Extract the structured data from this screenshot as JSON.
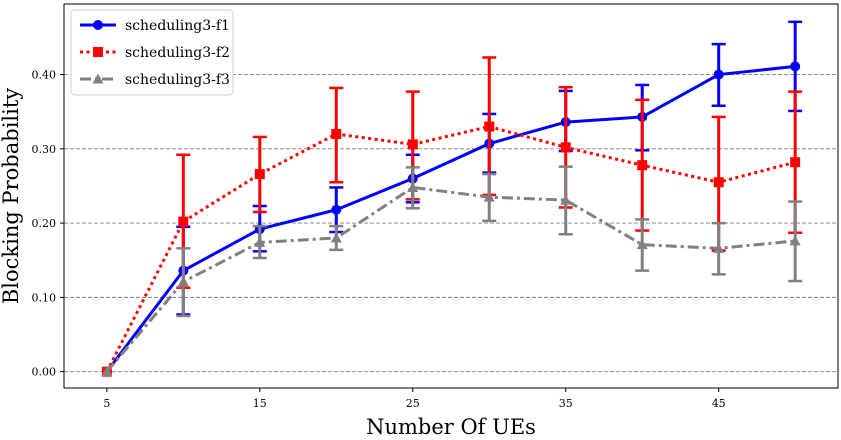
{
  "chart_data": {
    "type": "line",
    "xlabel": "Number Of UEs",
    "ylabel": "Blocking Probability",
    "x": [
      5,
      10,
      15,
      20,
      25,
      30,
      35,
      40,
      45,
      50
    ],
    "xticks": [
      "5",
      "15",
      "25",
      "35",
      "45"
    ],
    "xtick_values": [
      5,
      15,
      25,
      35,
      45
    ],
    "yticks": [
      "0.00",
      "0.10",
      "0.20",
      "0.30",
      "0.40"
    ],
    "ytick_values": [
      0.0,
      0.1,
      0.2,
      0.3,
      0.4
    ],
    "xlim": [
      2.2,
      52.8
    ],
    "ylim": [
      -0.022,
      0.495
    ],
    "grid": "horizontal dashed",
    "legend_position": "top-left",
    "series": [
      {
        "name": "scheduling3-f1",
        "color": "#0000ff",
        "line_style": "solid",
        "marker": "circle",
        "values": [
          0.0,
          0.136,
          0.192,
          0.218,
          0.26,
          0.307,
          0.336,
          0.343,
          0.4,
          0.411
        ],
        "err_low": [
          0.0,
          0.077,
          0.162,
          0.188,
          0.228,
          0.268,
          0.297,
          0.298,
          0.358,
          0.351
        ],
        "err_high": [
          0.0,
          0.195,
          0.223,
          0.248,
          0.292,
          0.347,
          0.378,
          0.386,
          0.441,
          0.471
        ]
      },
      {
        "name": "scheduling3-f2",
        "color": "#ff0000",
        "line_style": "dotted",
        "marker": "square",
        "values": [
          0.0,
          0.202,
          0.266,
          0.32,
          0.306,
          0.33,
          0.302,
          0.278,
          0.255,
          0.282
        ],
        "err_low": [
          0.0,
          0.113,
          0.215,
          0.255,
          0.232,
          0.238,
          0.221,
          0.19,
          0.163,
          0.187
        ],
        "err_high": [
          0.0,
          0.292,
          0.316,
          0.382,
          0.377,
          0.423,
          0.383,
          0.366,
          0.343,
          0.377
        ]
      },
      {
        "name": "scheduling3-f3",
        "color": "#808080",
        "line_style": "dashdot",
        "marker": "triangle",
        "values": [
          0.0,
          0.121,
          0.174,
          0.18,
          0.248,
          0.235,
          0.231,
          0.171,
          0.166,
          0.176
        ],
        "err_low": [
          0.0,
          0.075,
          0.153,
          0.164,
          0.22,
          0.203,
          0.185,
          0.136,
          0.131,
          0.122
        ],
        "err_high": [
          0.0,
          0.166,
          0.196,
          0.196,
          0.275,
          0.266,
          0.276,
          0.205,
          0.2,
          0.229
        ]
      }
    ]
  }
}
